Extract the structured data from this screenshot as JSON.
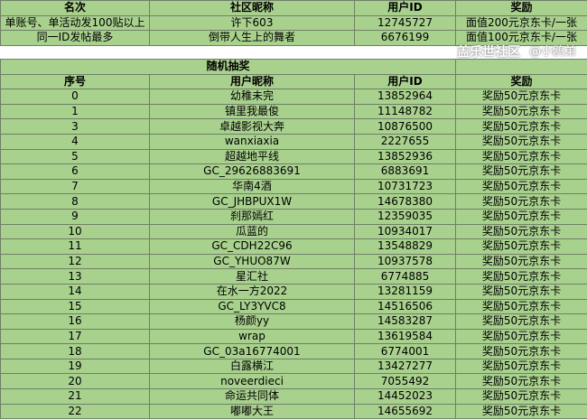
{
  "top_table": {
    "headers": [
      "名次",
      "社区昵称",
      "用户ID",
      "奖励"
    ],
    "rows": [
      [
        "单账号、单活动发100贴以上",
        "许下603",
        "12745727",
        "面值200元京东卡/一张"
      ],
      [
        "同一ID发帖最多",
        "倒带人生上的舞者",
        "6676199",
        "面值100元京东卡/一张"
      ]
    ]
  },
  "lottery_table": {
    "title": "随机抽奖",
    "headers": [
      "序号",
      "用户昵称",
      "用户ID",
      "奖励"
    ],
    "rows": [
      [
        "0",
        "幼稚未完",
        "13852964",
        "奖励50元京东卡"
      ],
      [
        "1",
        "镇里我最俊",
        "11148782",
        "奖励50元京东卡"
      ],
      [
        "3",
        "卓越影视大奔",
        "10876500",
        "奖励50元京东卡"
      ],
      [
        "4",
        "wanxiaxia",
        "2227655",
        "奖励50元京东卡"
      ],
      [
        "5",
        "超越地平线",
        "13852936",
        "奖励50元京东卡"
      ],
      [
        "6",
        "GC_29626883691",
        "6883691",
        "奖励50元京东卡"
      ],
      [
        "7",
        "华南4酒",
        "10731723",
        "奖励50元京东卡"
      ],
      [
        "8",
        "GC_JHBPUX1W",
        "14678380",
        "奖励50元京东卡"
      ],
      [
        "9",
        "刹那嫣红",
        "12359035",
        "奖励50元京东卡"
      ],
      [
        "10",
        "瓜蓝的",
        "10934017",
        "奖励50元京东卡"
      ],
      [
        "11",
        "GC_CDH22C96",
        "13548829",
        "奖励50元京东卡"
      ],
      [
        "12",
        "GC_YHUO87W",
        "10937578",
        "奖励50元京东卡"
      ],
      [
        "13",
        "星汇社",
        "6774885",
        "奖励50元京东卡"
      ],
      [
        "14",
        "在水一方2022",
        "13281159",
        "奖励50元京东卡"
      ],
      [
        "15",
        "GC_LY3YVC8",
        "14516506",
        "奖励50元京东卡"
      ],
      [
        "16",
        "杨颜yy",
        "14583287",
        "奖励50元京东卡"
      ],
      [
        "17",
        "wrap",
        "13619584",
        "奖励50元京东卡"
      ],
      [
        "18",
        "GC_03a16774001",
        "6774001",
        "奖励50元京东卡"
      ],
      [
        "19",
        "白露横江",
        "13427277",
        "奖励50元京东卡"
      ],
      [
        "20",
        "noveerdieci",
        "7055492",
        "奖励50元京东卡"
      ],
      [
        "21",
        "命运共同体",
        "14452023",
        "奖励50元京东卡"
      ],
      [
        "22",
        "嘟嘟大王",
        "14655692",
        "奖励50元京东卡"
      ]
    ]
  },
  "watermark": {
    "line1": "盖乐世社区",
    "line2": "@小鸥弟"
  }
}
